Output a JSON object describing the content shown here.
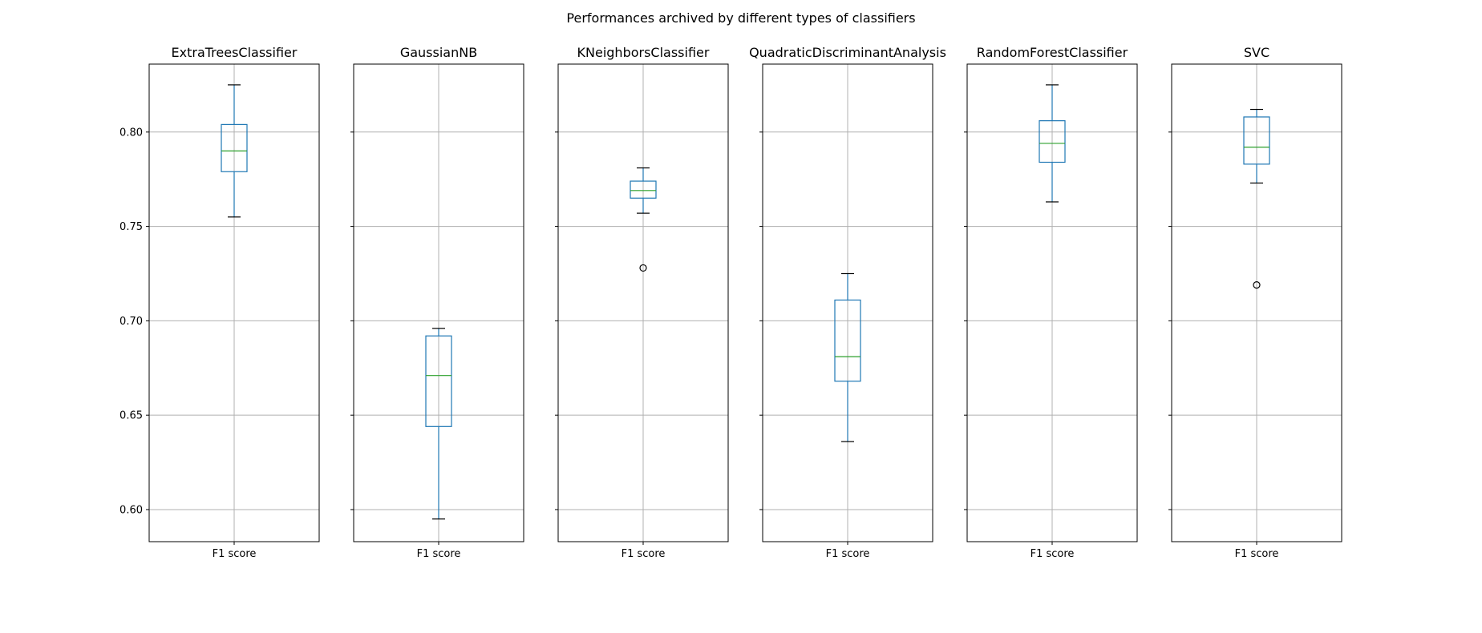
{
  "chart_data": {
    "type": "box",
    "title": "Performances archived by different types of classifiers",
    "ylim": [
      0.583,
      0.836
    ],
    "yticks": [
      0.6,
      0.65,
      0.7,
      0.75,
      0.8
    ],
    "ytick_labels": [
      "0.60",
      "0.65",
      "0.70",
      "0.75",
      "0.80"
    ],
    "shared_y": true,
    "grid": true,
    "colors": {
      "box": "#1f77b4",
      "median": "#2ca02c",
      "whisker_cap": "#000000",
      "grid": "#b0b0b0"
    },
    "panels": [
      {
        "title": "ExtraTreesClassifier",
        "category": "F1 score",
        "whisker_low": 0.755,
        "q1": 0.779,
        "median": 0.79,
        "q3": 0.804,
        "whisker_high": 0.825,
        "outliers": []
      },
      {
        "title": "GaussianNB",
        "category": "F1 score",
        "whisker_low": 0.595,
        "q1": 0.644,
        "median": 0.671,
        "q3": 0.692,
        "whisker_high": 0.696,
        "outliers": []
      },
      {
        "title": "KNeighborsClassifier",
        "category": "F1 score",
        "whisker_low": 0.757,
        "q1": 0.765,
        "median": 0.769,
        "q3": 0.774,
        "whisker_high": 0.781,
        "outliers": [
          0.728
        ]
      },
      {
        "title": "QuadraticDiscriminantAnalysis",
        "category": "F1 score",
        "whisker_low": 0.636,
        "q1": 0.668,
        "median": 0.681,
        "q3": 0.711,
        "whisker_high": 0.725,
        "outliers": []
      },
      {
        "title": "RandomForestClassifier",
        "category": "F1 score",
        "whisker_low": 0.763,
        "q1": 0.784,
        "median": 0.794,
        "q3": 0.806,
        "whisker_high": 0.825,
        "outliers": []
      },
      {
        "title": "SVC",
        "category": "F1 score",
        "whisker_low": 0.773,
        "q1": 0.783,
        "median": 0.792,
        "q3": 0.808,
        "whisker_high": 0.812,
        "outliers": [
          0.719
        ]
      }
    ]
  }
}
